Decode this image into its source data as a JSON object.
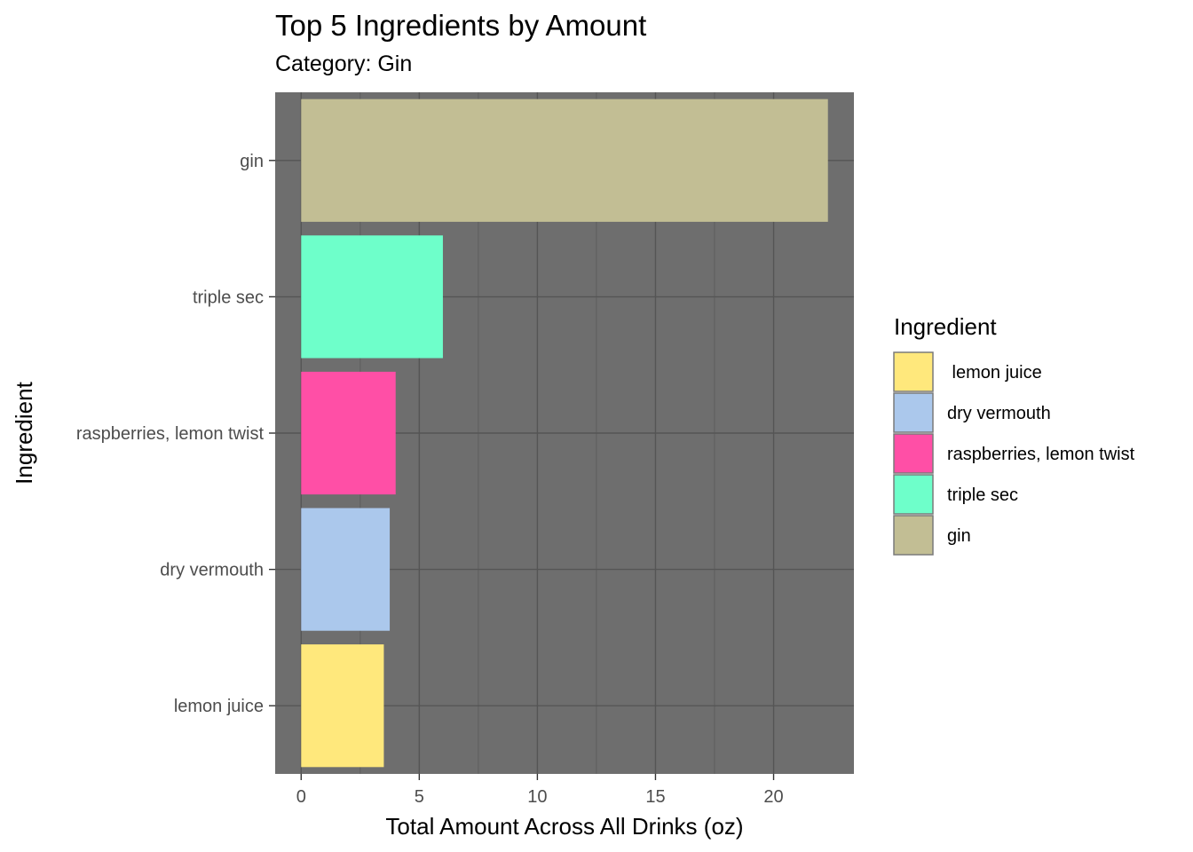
{
  "chart_data": {
    "type": "bar",
    "orientation": "horizontal",
    "title": "Top 5 Ingredients by Amount",
    "subtitle": "Category: Gin",
    "xlabel": "Total Amount Across All Drinks (oz)",
    "ylabel": "Ingredient",
    "xlim": [
      -1.1,
      23.4
    ],
    "xticks": [
      0,
      5,
      10,
      15,
      20
    ],
    "categories": [
      "lemon juice",
      "dry vermouth",
      "raspberries, lemon twist",
      "triple sec",
      "gin"
    ],
    "values": [
      3.5,
      3.75,
      4,
      6,
      22.3
    ],
    "colors": [
      "#FFE87C",
      "#ABC8EC",
      "#FF4FA6",
      "#6EFFCA",
      "#C2BE94"
    ],
    "grid": true,
    "panel_background": "#6E6E6E",
    "legend": {
      "title": "Ingredient",
      "position": "right",
      "items": [
        " lemon juice",
        "dry vermouth",
        "raspberries, lemon twist",
        "triple sec",
        "gin"
      ]
    }
  }
}
